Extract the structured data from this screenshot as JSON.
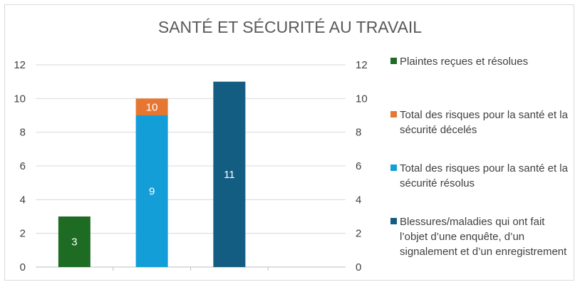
{
  "chart_data": {
    "type": "bar",
    "stacked": true,
    "title": "SANTÉ ET SÉCURITÉ AU TRAVAIL",
    "categories": [
      "",
      "",
      "",
      ""
    ],
    "ylim": [
      0,
      12
    ],
    "yticks": [
      "0",
      "2",
      "4",
      "6",
      "8",
      "10",
      "12"
    ],
    "secondary_yticks": [
      "0",
      "2",
      "4",
      "6",
      "8",
      "10",
      "12"
    ],
    "grid": true,
    "legend_position": "right",
    "series": [
      {
        "name": "Plaintes reçues et résolues",
        "color": "#1e6b24",
        "values": [
          3,
          0,
          0,
          0
        ],
        "labels": [
          "3",
          "",
          "",
          ""
        ]
      },
      {
        "name": "Total des risques pour la santé et la sécurité décelés",
        "color": "#e67733",
        "values": [
          0,
          1,
          0,
          0
        ],
        "labels": [
          "",
          "10",
          "",
          ""
        ]
      },
      {
        "name": "Total des risques pour la santé et la sécurité résolus",
        "color": "#139ed8",
        "values": [
          0,
          9,
          0,
          0
        ],
        "labels": [
          "",
          "9",
          "",
          ""
        ]
      },
      {
        "name": "Blessures/maladies qui ont fait l’objet d’une enquête, d’un signalement et d’un enregistrement",
        "color": "#135c82",
        "values": [
          0,
          0,
          11,
          0
        ],
        "labels": [
          "",
          "",
          "11",
          ""
        ]
      }
    ],
    "stack_order": [
      0,
      2,
      1,
      3
    ]
  }
}
